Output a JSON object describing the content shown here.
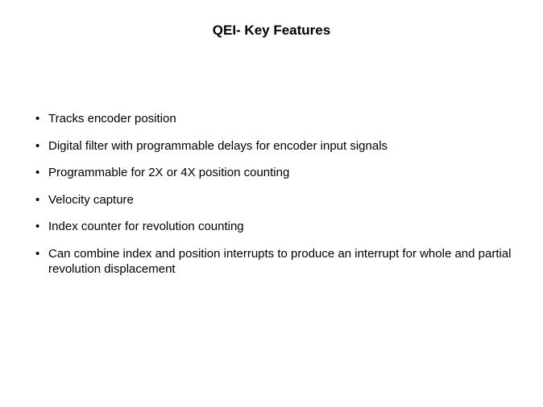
{
  "slide": {
    "title": "QEI- Key Features",
    "title_fontsize": 17,
    "body_fontsize": 15,
    "title_color": "#000000",
    "text_color": "#000000",
    "background_color": "#ffffff",
    "bullets": [
      "Tracks encoder position",
      "Digital filter with programmable delays for encoder input signals",
      "Programmable for 2X or 4X position counting",
      "Velocity capture",
      "Index counter for revolution counting",
      "Can combine index and position interrupts to produce an interrupt for whole and partial revolution displacement"
    ]
  }
}
